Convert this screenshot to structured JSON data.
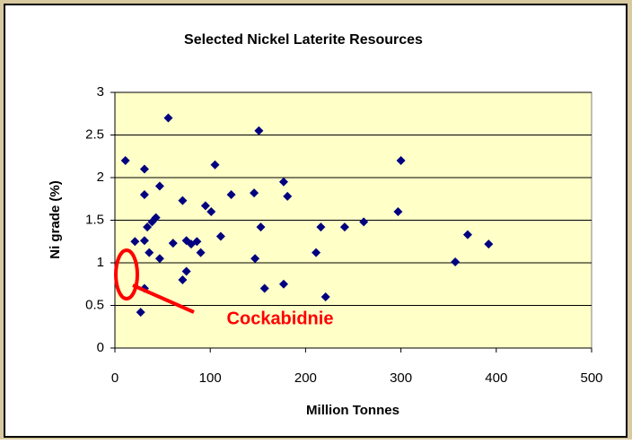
{
  "chart_data": {
    "type": "scatter",
    "title": "Selected Nickel Laterite Resources",
    "x_label": "Million Tonnes",
    "y_label": "Ni grade (%)",
    "annotation": "Cockabidnie",
    "color": "#000080",
    "grid": true,
    "xlim": [
      0,
      500
    ],
    "xticks": [
      0,
      100,
      200,
      300,
      400,
      500
    ],
    "ylim": [
      0,
      3
    ],
    "yticks": [
      0,
      0.5,
      1,
      1.5,
      2,
      2.5,
      3
    ],
    "x": [
      11,
      31,
      56,
      151,
      105,
      300,
      47,
      31,
      71,
      122,
      146,
      177,
      181,
      95,
      101,
      297,
      43,
      39,
      34,
      153,
      216,
      241,
      261,
      111,
      61,
      21,
      31,
      75,
      80,
      86,
      370,
      392,
      36,
      90,
      47,
      147,
      211,
      357,
      75,
      71,
      157,
      177,
      221,
      31,
      27
    ],
    "y": [
      2.2,
      2.1,
      2.7,
      2.55,
      2.15,
      2.2,
      1.9,
      1.8,
      1.73,
      1.8,
      1.82,
      1.95,
      1.78,
      1.67,
      1.6,
      1.6,
      1.53,
      1.48,
      1.42,
      1.42,
      1.42,
      1.42,
      1.48,
      1.31,
      1.23,
      1.25,
      1.26,
      1.26,
      1.22,
      1.25,
      1.33,
      1.22,
      1.12,
      1.12,
      1.05,
      1.05,
      1.12,
      1.01,
      0.9,
      0.8,
      0.7,
      0.75,
      0.6,
      0.7,
      0.42
    ]
  }
}
